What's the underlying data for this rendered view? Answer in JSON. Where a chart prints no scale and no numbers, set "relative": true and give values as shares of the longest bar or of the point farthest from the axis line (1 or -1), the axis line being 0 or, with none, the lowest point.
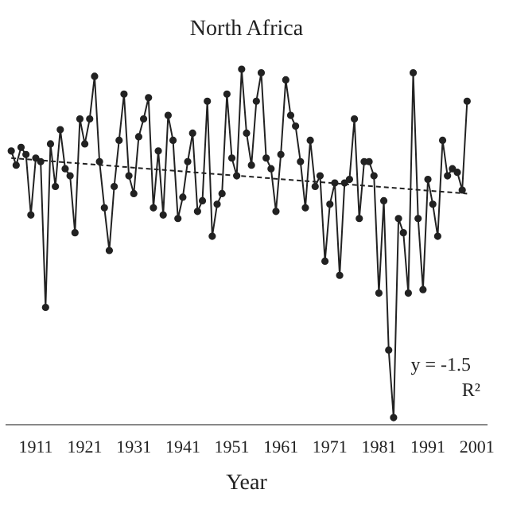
{
  "chart_data": {
    "type": "line",
    "title": "North Africa",
    "xlabel": "Year",
    "relative": true,
    "marker": "circle",
    "xlim": [
      1905,
      2003
    ],
    "xticks": [
      1911,
      1921,
      1931,
      1941,
      1951,
      1961,
      1971,
      1981,
      1991,
      2001
    ],
    "series": [
      {
        "color": "#222222",
        "x": [
          1906,
          1907,
          1908,
          1909,
          1910,
          1911,
          1912,
          1913,
          1914,
          1915,
          1916,
          1917,
          1918,
          1919,
          1920,
          1921,
          1922,
          1923,
          1924,
          1925,
          1926,
          1927,
          1928,
          1929,
          1930,
          1931,
          1932,
          1933,
          1934,
          1935,
          1936,
          1937,
          1938,
          1939,
          1940,
          1941,
          1942,
          1943,
          1944,
          1945,
          1946,
          1947,
          1948,
          1949,
          1950,
          1951,
          1952,
          1953,
          1954,
          1955,
          1956,
          1957,
          1958,
          1959,
          1960,
          1961,
          1962,
          1963,
          1964,
          1965,
          1966,
          1967,
          1968,
          1969,
          1970,
          1971,
          1972,
          1973,
          1974,
          1975,
          1976,
          1977,
          1978,
          1979,
          1980,
          1981,
          1982,
          1983,
          1984,
          1985,
          1986,
          1987,
          1988,
          1989,
          1990,
          1991,
          1992,
          1993,
          1994,
          1995,
          1996,
          1997,
          1998,
          1999
        ],
        "values": [
          0.77,
          0.73,
          0.78,
          0.76,
          0.59,
          0.75,
          0.74,
          0.33,
          0.79,
          0.67,
          0.83,
          0.72,
          0.7,
          0.54,
          0.86,
          0.79,
          0.86,
          0.98,
          0.74,
          0.61,
          0.49,
          0.67,
          0.8,
          0.93,
          0.7,
          0.65,
          0.81,
          0.86,
          0.92,
          0.61,
          0.77,
          0.59,
          0.87,
          0.8,
          0.58,
          0.64,
          0.74,
          0.82,
          0.6,
          0.63,
          0.91,
          0.53,
          0.62,
          0.65,
          0.93,
          0.75,
          0.7,
          1.0,
          0.82,
          0.73,
          0.91,
          0.99,
          0.75,
          0.72,
          0.6,
          0.76,
          0.97,
          0.87,
          0.84,
          0.74,
          0.61,
          0.8,
          0.67,
          0.7,
          0.46,
          0.62,
          0.68,
          0.42,
          0.68,
          0.69,
          0.86,
          0.58,
          0.74,
          0.74,
          0.7,
          0.37,
          0.63,
          0.21,
          0.02,
          0.58,
          0.54,
          0.37,
          0.99,
          0.58,
          0.38,
          0.69,
          0.62,
          0.53,
          0.8,
          0.7,
          0.72,
          0.71,
          0.66,
          0.91
        ]
      },
      {
        "color": "#222222",
        "x": [
          1906,
          1999
        ],
        "values": [
          0.75,
          0.65
        ],
        "marker": "none",
        "line_style": "dashed"
      }
    ],
    "annotations": [
      "y = -1.5",
      "R²"
    ]
  }
}
